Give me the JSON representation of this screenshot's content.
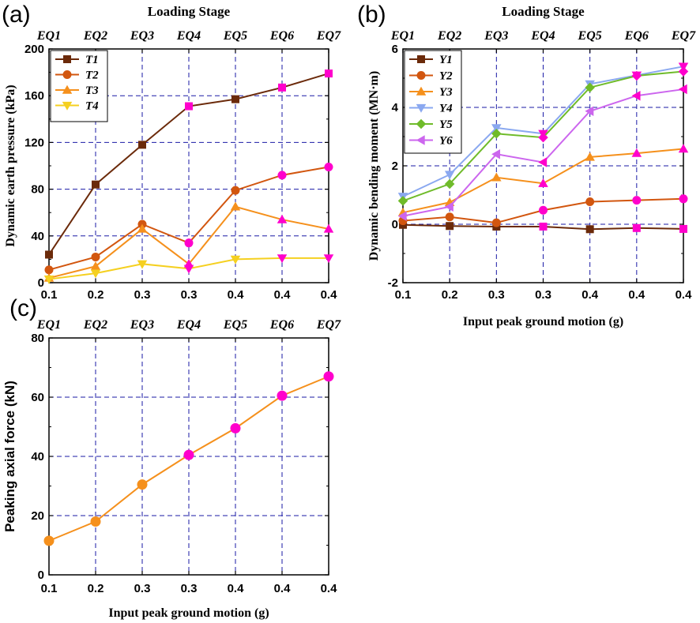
{
  "chart_data": [
    {
      "panel_label": "(a)",
      "type": "line",
      "title": "Loading Stage",
      "top_categories": [
        "EQ1",
        "EQ2",
        "EQ3",
        "EQ4",
        "EQ5",
        "EQ6",
        "EQ7"
      ],
      "categories": [
        "0.1",
        "0.2",
        "0.3",
        "0.3",
        "0.4",
        "0.4",
        "0.4"
      ],
      "xlabel": "",
      "ylabel": "Dynamic earth pressure (kPa)",
      "ylim": [
        0,
        200
      ],
      "yticks": [
        "0",
        "40",
        "80",
        "120",
        "160",
        "200"
      ],
      "grid_y": [
        40,
        80,
        120,
        160
      ],
      "legend_position": "top-left",
      "series": [
        {
          "name": "T1",
          "color": "#6b2a0a",
          "marker": "square",
          "values": [
            24,
            84,
            118,
            151,
            157,
            167,
            179
          ]
        },
        {
          "name": "T2",
          "color": "#d2560f",
          "marker": "circle",
          "values": [
            11,
            22,
            50,
            34,
            79,
            92,
            99
          ]
        },
        {
          "name": "T3",
          "color": "#f5901c",
          "marker": "triangle-up",
          "values": [
            4,
            14,
            46,
            16,
            65,
            54,
            46
          ]
        },
        {
          "name": "T4",
          "color": "#f5d020",
          "marker": "triangle-down",
          "values": [
            3,
            8,
            16,
            12,
            20,
            21,
            21
          ]
        }
      ]
    },
    {
      "panel_label": "(b)",
      "type": "line",
      "title": "Loading Stage",
      "top_categories": [
        "EQ1",
        "EQ2",
        "EQ3",
        "EQ4",
        "EQ5",
        "EQ6",
        "EQ7"
      ],
      "categories": [
        "0.1",
        "0.2",
        "0.3",
        "0.3",
        "0.4",
        "0.4",
        "0.4"
      ],
      "xlabel": "Input peak ground motion (g)",
      "ylabel": "Dynamic bending moment (MN·m)",
      "ylim": [
        -2,
        6
      ],
      "yticks": [
        "-2",
        "0",
        "2",
        "4",
        "6"
      ],
      "grid_y": [
        0,
        2,
        4
      ],
      "legend_position": "top-left",
      "series": [
        {
          "name": "Y1",
          "color": "#6b2a0a",
          "marker": "square",
          "values": [
            -0.02,
            -0.06,
            -0.08,
            -0.08,
            -0.17,
            -0.13,
            -0.16
          ]
        },
        {
          "name": "Y2",
          "color": "#d2560f",
          "marker": "circle",
          "values": [
            0.12,
            0.25,
            0.05,
            0.48,
            0.77,
            0.82,
            0.87
          ]
        },
        {
          "name": "Y3",
          "color": "#f5901c",
          "marker": "triangle-up",
          "values": [
            0.4,
            0.75,
            1.6,
            1.4,
            2.3,
            2.43,
            2.58
          ]
        },
        {
          "name": "Y4",
          "color": "#8aa8f0",
          "marker": "triangle-down",
          "values": [
            0.95,
            1.7,
            3.3,
            3.1,
            4.8,
            5.1,
            5.4
          ]
        },
        {
          "name": "Y5",
          "color": "#6fbb2a",
          "marker": "diamond",
          "values": [
            0.8,
            1.38,
            3.1,
            2.97,
            4.68,
            5.08,
            5.23
          ]
        },
        {
          "name": "Y6",
          "color": "#cc66ee",
          "marker": "triangle-left",
          "values": [
            0.28,
            0.6,
            2.4,
            2.12,
            3.87,
            4.4,
            4.62
          ]
        }
      ]
    },
    {
      "panel_label": "(c)",
      "type": "line",
      "title": "",
      "top_categories": [
        "EQ1",
        "EQ2",
        "EQ3",
        "EQ4",
        "EQ5",
        "EQ6",
        "EQ7"
      ],
      "categories": [
        "0.1",
        "0.2",
        "0.3",
        "0.3",
        "0.4",
        "0.4",
        "0.4"
      ],
      "xlabel": "Input peak ground motion (g)",
      "ylabel": "Peaking axial force (kN)",
      "ylim": [
        0,
        80
      ],
      "yticks": [
        "0",
        "20",
        "40",
        "60",
        "80"
      ],
      "grid_y": [
        20,
        40,
        60
      ],
      "legend_position": "none",
      "series": [
        {
          "name": "Axial force",
          "color": "#f5901c",
          "marker": "circle",
          "values": [
            11.5,
            18,
            30.5,
            40.5,
            49.5,
            60.5,
            67
          ]
        }
      ]
    }
  ],
  "colors": {
    "grid": "#1a1aa6",
    "highlight_marker": "#ff00cc",
    "axis": "#000000"
  }
}
